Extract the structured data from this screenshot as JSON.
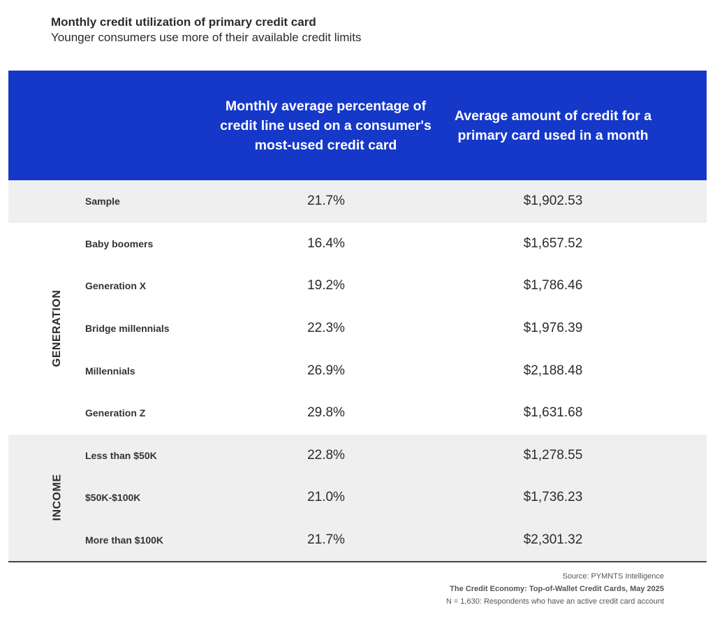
{
  "title": "Monthly credit utilization of primary credit card",
  "subtitle": "Younger consumers use more of their available credit limits",
  "chart_data": {
    "type": "table",
    "columns": [
      "Monthly average percentage of credit line used on a consumer's most-used credit card",
      "Average amount of credit for a primary card used in a month"
    ],
    "groups": [
      {
        "name": "",
        "rows": [
          0
        ]
      },
      {
        "name": "GENERATION",
        "rows": [
          1,
          2,
          3,
          4,
          5
        ]
      },
      {
        "name": "INCOME",
        "rows": [
          6,
          7,
          8
        ]
      }
    ],
    "rows": [
      {
        "label": "Sample",
        "pct": "21.7%",
        "amount": "$1,902.53"
      },
      {
        "label": "Baby boomers",
        "pct": "16.4%",
        "amount": "$1,657.52"
      },
      {
        "label": "Generation X",
        "pct": "19.2%",
        "amount": "$1,786.46"
      },
      {
        "label": "Bridge millennials",
        "pct": "22.3%",
        "amount": "$1,976.39"
      },
      {
        "label": "Millennials",
        "pct": "26.9%",
        "amount": "$2,188.48"
      },
      {
        "label": "Generation Z",
        "pct": "29.8%",
        "amount": "$1,631.68"
      },
      {
        "label": "Less than $50K",
        "pct": "22.8%",
        "amount": "$1,278.55"
      },
      {
        "label": "$50K-$100K",
        "pct": "21.0%",
        "amount": "$1,736.23"
      },
      {
        "label": "More than $100K",
        "pct": "21.7%",
        "amount": "$2,301.32"
      }
    ],
    "header_color": "#1538c9",
    "shade_color": "#efefef"
  },
  "footer": {
    "source": "Source: PYMNTS Intelligence",
    "report": "The Credit Economy: Top-of-Wallet Credit Cards, May 2025",
    "note": "N = 1,630: Respondents who have an active credit card account"
  }
}
